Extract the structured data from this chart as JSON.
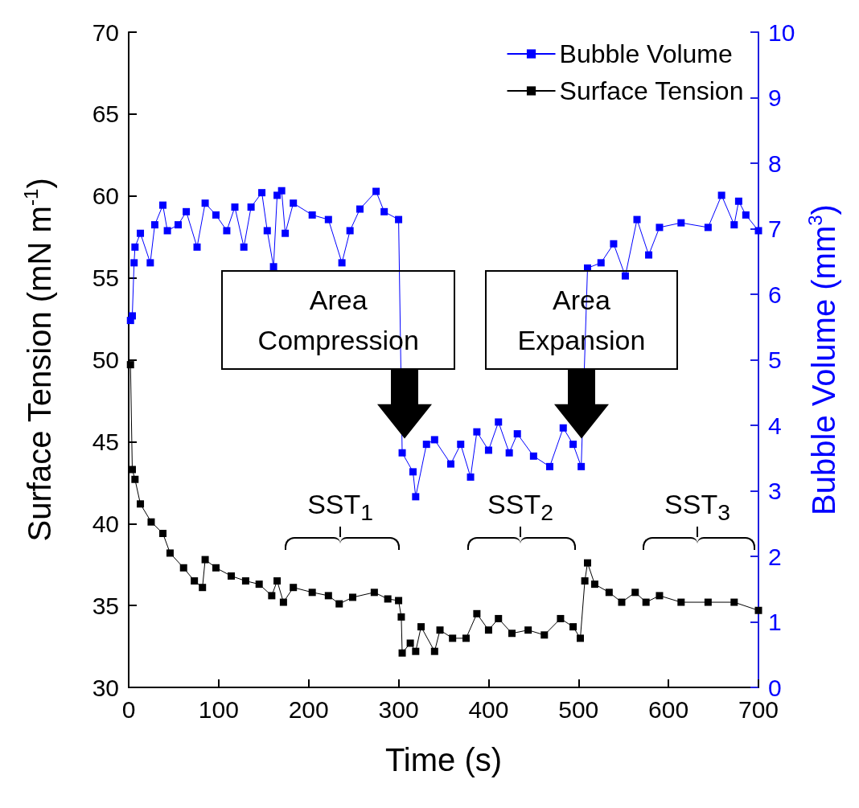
{
  "chart_data": {
    "type": "line",
    "xlabel": "Time (s)",
    "ylabel": "Surface Tension (mN m$^{-1}$)",
    "y2label": "Bubble Volume (mm$^{3}$)",
    "xlim": [
      0,
      700
    ],
    "xticks": [
      0,
      100,
      200,
      300,
      400,
      500,
      600,
      700
    ],
    "ylim": [
      30,
      70
    ],
    "yticks": [
      30,
      35,
      40,
      45,
      50,
      55,
      60,
      65,
      70
    ],
    "y2lim": [
      0,
      10
    ],
    "y2ticks": [
      0,
      1,
      2,
      3,
      4,
      5,
      6,
      7,
      8,
      9,
      10
    ],
    "marker": "square",
    "line_style": "solid",
    "legend": "top right",
    "grid": false,
    "series": [
      {
        "name": "Bubble Volume",
        "color": "#0000ff",
        "axis": "y2",
        "x": [
          2,
          4,
          6,
          7,
          13,
          24,
          29,
          38,
          43,
          55,
          64,
          76,
          85,
          97,
          109,
          118,
          128,
          136,
          148,
          154,
          161,
          165,
          170,
          174,
          183,
          204,
          222,
          237,
          246,
          257,
          275,
          284,
          300,
          304,
          316,
          319,
          331,
          340,
          358,
          369,
          380,
          387,
          400,
          411,
          423,
          432,
          450,
          468,
          483,
          494,
          503,
          510,
          525,
          539,
          552,
          565,
          578,
          590,
          614,
          644,
          659,
          673,
          678,
          686,
          700
        ],
        "values": [
          5.6,
          5.67,
          6.48,
          6.72,
          6.93,
          6.48,
          7.06,
          7.36,
          6.97,
          7.06,
          7.26,
          6.72,
          7.39,
          7.21,
          6.97,
          7.33,
          6.72,
          7.33,
          7.55,
          6.97,
          6.42,
          7.51,
          7.58,
          6.93,
          7.39,
          7.21,
          7.14,
          6.48,
          6.97,
          7.3,
          7.57,
          7.26,
          7.14,
          3.58,
          3.29,
          2.91,
          3.71,
          3.78,
          3.41,
          3.71,
          3.21,
          3.9,
          3.62,
          4.05,
          3.58,
          3.87,
          3.53,
          3.37,
          3.96,
          3.71,
          3.37,
          6.4,
          6.48,
          6.77,
          6.28,
          7.14,
          6.6,
          7.02,
          7.09,
          7.02,
          7.51,
          7.06,
          7.42,
          7.21,
          6.97
        ]
      },
      {
        "name": "Surface Tension",
        "color": "#000000",
        "x": [
          2,
          4,
          7,
          13,
          25,
          38,
          46,
          61,
          73,
          82,
          85,
          97,
          114,
          130,
          145,
          159,
          165,
          172,
          183,
          204,
          222,
          234,
          249,
          273,
          288,
          300,
          303,
          304,
          313,
          319,
          325,
          340,
          346,
          360,
          375,
          387,
          400,
          411,
          426,
          444,
          462,
          480,
          494,
          502,
          507,
          510,
          518,
          534,
          548,
          563,
          575,
          590,
          614,
          644,
          673,
          700
        ],
        "values": [
          49.7,
          43.3,
          42.7,
          41.2,
          40.1,
          39.4,
          38.2,
          37.3,
          36.5,
          36.1,
          37.8,
          37.3,
          36.8,
          36.5,
          36.3,
          35.6,
          36.5,
          35.2,
          36.1,
          35.8,
          35.6,
          35.1,
          35.5,
          35.8,
          35.4,
          35.3,
          34.3,
          32.1,
          32.7,
          32.2,
          33.7,
          32.2,
          33.5,
          33,
          33,
          34.5,
          33.5,
          34.2,
          33.3,
          33.5,
          33.2,
          34.2,
          33.7,
          33,
          36.5,
          37.6,
          36.3,
          35.8,
          35.2,
          35.8,
          35.2,
          35.6,
          35.2,
          35.2,
          35.2,
          34.7
        ]
      }
    ],
    "annotations": [
      "Area Compression",
      "Area Expansion",
      "SST$_{1}$",
      "SST$_{2}$",
      "SST$_{3}$"
    ]
  }
}
